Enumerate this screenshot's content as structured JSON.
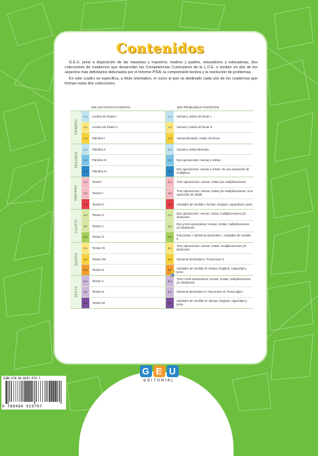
{
  "title": "Contenidos",
  "intro": [
    "G.E.U. pone a disposición de las maestras y maestros, madres y padres, educadores y educadoras, dos colecciones de cuadernos que desarrollan las Competencias Curriculares de la L.O.E. e inciden en dos de los aspectos más deficitarios detectados por el Informe PISA: la comprensión lectora y la resolución de problemas.",
    "En este cuadro se especifica, a título orientativo, el curso al que va destinado cada uno de los cuadernos que forman estas dos colecciones."
  ],
  "colors": {
    "background": "#6cbf3f",
    "title": "#f7c21e",
    "c1": "#bfe3f2",
    "c2": "#fde77a",
    "c3": "#f39b2f",
    "c4": "#7bc3e8",
    "c5": "#2a87c9",
    "c6": "#f6b9c5",
    "c7": "#e63e49",
    "c8": "#d6e8a1",
    "c9": "#a6cf57",
    "c10": "#cbb7da",
    "c11": "#7b4f9d"
  },
  "columns": {
    "left": "MIS LECTURAS FAVORITAS",
    "right": "MIS PROBLEMAS FAVORITOS"
  },
  "groups": [
    {
      "name": "PRIMERO",
      "rows": [
        {
          "left_num": "1.1",
          "left": "Lectura de frases I",
          "right_num": "1.1",
          "right": "Sumas y restas sin llevar I.",
          "c": "c1"
        },
        {
          "left_num": "1.2",
          "left": "Lectura de frases II",
          "right_num": "1.2",
          "right": "Sumas y restas sin llevar II.",
          "c": "c2"
        },
        {
          "left_num": "1.3",
          "left": "Párrafos I",
          "right_num": "1.3",
          "right": "Sumas llevando, restas sin llevar.",
          "c": "c2b"
        }
      ]
    },
    {
      "name": "SEGUNDO",
      "rows": [
        {
          "left_num": "2.1",
          "left": "Párrafos II",
          "right_num": "2.1",
          "right": "Sumas y restas llevando.",
          "c": "c1"
        },
        {
          "left_num": "2.2",
          "left": "Párrafos III",
          "right_num": "2.2",
          "right": "Dos operaciones: sumas y restas.",
          "c": "c4"
        },
        {
          "left_num": "2.3",
          "left": "Párrafos IV",
          "right_num": "2.3",
          "right": "Dos operaciones: sumas y restas. De una operación de multiplicar.",
          "c": "c5"
        }
      ]
    },
    {
      "name": "TERCERO",
      "rows": [
        {
          "left_num": "3.1",
          "left": "Textos I",
          "right_num": "3.1",
          "right": "Tres operaciones: sumas, restas y/o multiplicaciones.",
          "c": "c6"
        },
        {
          "left_num": "3.2",
          "left": "Textos II",
          "right_num": "3.2",
          "right": "Tres operaciones: sumas, restas y/o multiplicaciones. Una operación de dividir.",
          "c": "c6"
        },
        {
          "left_num": "3.3",
          "left": "Textos III",
          "right_num": "3.3",
          "right": "Unidades de medida I: tiempo, longitud, capacidad y peso.",
          "c": "c7"
        }
      ]
    },
    {
      "name": "CUARTO",
      "rows": [
        {
          "left_num": "4.1",
          "left": "Textos IV",
          "right_num": "4.1",
          "right": "Dos operaciones: sumas, restas, multiplicaciones y/o divisiones.",
          "c": "c8"
        },
        {
          "left_num": "4.2",
          "left": "Textos V",
          "right_num": "4.2",
          "right": "Dos y tres operaciones: sumas, restas, multiplicaciones y/o divisiones.",
          "c": "c8"
        },
        {
          "left_num": "4.3",
          "left": "Textos VI",
          "right_num": "4.3",
          "right": "Fracciones I. Números decimales I. Unidades de medida II.",
          "c": "c9"
        }
      ]
    },
    {
      "name": "QUINTO",
      "rows": [
        {
          "left_num": "5.1",
          "left": "Textos VII",
          "right_num": "5.1",
          "right": "Tres operaciones: sumas, restas, multiplicaciones y/o divisiones.",
          "c": "c2"
        },
        {
          "left_num": "5.2",
          "left": "Textos VIII",
          "right_num": "5.2",
          "right": "Números decimales II. Fracciones II.",
          "c": "c2b"
        },
        {
          "left_num": "5.3",
          "left": "Textos IX",
          "right_num": "5.3",
          "right": "Unidades de medida III: tiempo, longitud, capacidad y peso.",
          "c": "c3"
        }
      ]
    },
    {
      "name": "SEXTO",
      "rows": [
        {
          "left_num": "6.1",
          "left": "Textos X",
          "right_num": "6.1",
          "right": "Tres o más operaciones: sumas, restas, multiplicaciones y/o divisiones.",
          "c": "c10"
        },
        {
          "left_num": "6.2",
          "left": "Textos XI",
          "right_num": "6.2",
          "right": "Números decimales III. Fracciones III. Porcentajes.",
          "c": "c10"
        },
        {
          "left_num": "6.3",
          "left": "Textos XII",
          "right_num": "6.3",
          "right": "Unidades de medida IV: tiempo, longitud, capacidad y peso.",
          "c": "c11"
        }
      ]
    }
  ],
  "isbn": "ISBN 978-84-8491-979-7",
  "ean": "9 788484 919797",
  "logo": {
    "letters": [
      "G",
      "E",
      "U"
    ],
    "word": "EDITORIAL"
  }
}
